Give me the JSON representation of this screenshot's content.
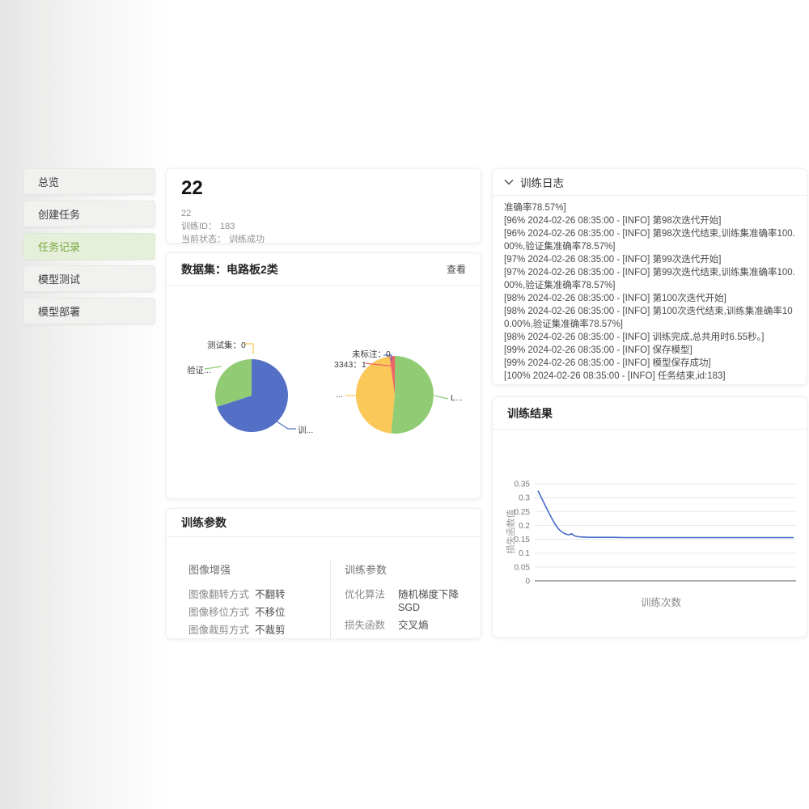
{
  "sidebar": {
    "items": [
      {
        "label": "总览"
      },
      {
        "label": "创建任务"
      },
      {
        "label": "任务记录",
        "active": true
      },
      {
        "label": "模型测试"
      },
      {
        "label": "模型部署"
      }
    ]
  },
  "task": {
    "title": "22",
    "name": "22",
    "train_id_label": "训练ID：",
    "train_id": "183",
    "status_label": "当前状态：",
    "status": "训练成功"
  },
  "dataset": {
    "header": "数据集：电路板2类",
    "view_button": "查看"
  },
  "params": {
    "section_title": "训练参数",
    "augment": {
      "title": "图像增强",
      "rows": [
        {
          "key": "图像翻转方式",
          "value": "不翻转"
        },
        {
          "key": "图像移位方式",
          "value": "不移位"
        },
        {
          "key": "图像裁剪方式",
          "value": "不裁剪"
        }
      ]
    },
    "training": {
      "title": "训练参数",
      "rows": [
        {
          "key": "优化算法",
          "value": "随机梯度下降 SGD"
        },
        {
          "key": "损失函数",
          "value": "交叉熵"
        }
      ]
    }
  },
  "log": {
    "title": "训练日志",
    "entries": [
      "准确率78.57%]",
      "[96% 2024-02-26 08:35:00 - [INFO] 第98次迭代开始]",
      "[96% 2024-02-26 08:35:00 - [INFO] 第98次迭代结束,训练集准确率100.00%,验证集准确率78.57%]",
      "[97% 2024-02-26 08:35:00 - [INFO] 第99次迭代开始]",
      "[97% 2024-02-26 08:35:00 - [INFO] 第99次迭代结束,训练集准确率100.00%,验证集准确率78.57%]",
      "[98% 2024-02-26 08:35:00 - [INFO] 第100次迭代开始]",
      "[98% 2024-02-26 08:35:00 - [INFO] 第100次迭代结束,训练集准确率100.00%,验证集准确率78.57%]",
      "[98% 2024-02-26 08:35:00 - [INFO] 训练完成,总共用时6.55秒。]",
      "[99% 2024-02-26 08:35:00 - [INFO] 保存模型]",
      "[99% 2024-02-26 08:35:00 - [INFO] 模型保存成功]",
      "[100% 2024-02-26 08:35:00 - [INFO] 任务结束,id:183]"
    ]
  },
  "results": {
    "title": "训练结果"
  },
  "accent_color": "#76a73c",
  "chart_data": [
    {
      "type": "pie",
      "name": "dataset-split",
      "slices": [
        {
          "label": "训练集",
          "display": "训...",
          "value": 70,
          "color": "#5470c6"
        },
        {
          "label": "验证集",
          "display": "验证...",
          "value": 30,
          "color": "#91cc75"
        },
        {
          "label": "测试集",
          "display": "测试集：0",
          "value": 0,
          "color": "#fac858"
        }
      ]
    },
    {
      "type": "pie",
      "name": "label-distribution",
      "slices": [
        {
          "label": "L...",
          "display": "L...",
          "value": 51.5,
          "color": "#91cc75"
        },
        {
          "label": "...",
          "display": "...",
          "value": 46.3,
          "color": "#fac858"
        },
        {
          "label": "3343",
          "display": "3343：1",
          "value": 2.2,
          "color": "#ee6666"
        },
        {
          "label": "未标注",
          "display": "未标注：0",
          "value": 0,
          "color": "#5470c6"
        }
      ]
    },
    {
      "type": "line",
      "title": "训练结果",
      "xlabel": "训练次数",
      "ylabel": "损失函数值",
      "xlim": [
        1,
        100
      ],
      "ylim": [
        0,
        0.35
      ],
      "yticks": [
        0,
        0.05,
        0.1,
        0.15,
        0.2,
        0.25,
        0.3,
        0.35
      ],
      "ytick_labels": [
        "0",
        "0.05",
        "0.1",
        "0.15",
        "0.2",
        "0.25",
        "0.3",
        "0.35"
      ],
      "grid": true,
      "line_color": "#4569c7",
      "series": [
        {
          "name": "损失函数值",
          "x": [
            1,
            2,
            3,
            4,
            5,
            6,
            7,
            8,
            9,
            10,
            11,
            12,
            13,
            14,
            15,
            16,
            17,
            18,
            19,
            20,
            25,
            30,
            35,
            40,
            45,
            50,
            55,
            60,
            65,
            70,
            75,
            80,
            85,
            90,
            95,
            100
          ],
          "y": [
            0.325,
            0.306,
            0.287,
            0.268,
            0.249,
            0.231,
            0.214,
            0.199,
            0.187,
            0.178,
            0.172,
            0.168,
            0.166,
            0.17,
            0.163,
            0.16,
            0.159,
            0.158,
            0.158,
            0.157,
            0.157,
            0.157,
            0.156,
            0.156,
            0.156,
            0.156,
            0.156,
            0.156,
            0.156,
            0.156,
            0.156,
            0.156,
            0.156,
            0.156,
            0.156,
            0.156
          ]
        }
      ]
    }
  ]
}
